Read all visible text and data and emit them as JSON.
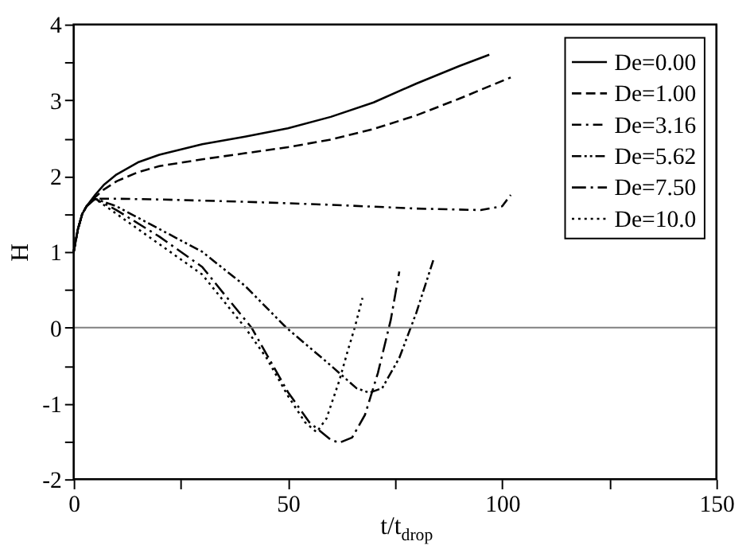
{
  "chart_data": {
    "type": "line",
    "xlabel": "t/t$_{drop}$",
    "ylabel": "H",
    "xlim": [
      0,
      150
    ],
    "xticks": [
      0,
      {
        "value": 25,
        "label": null
      },
      50,
      {
        "value": 75,
        "label": null
      },
      100,
      {
        "value": 125,
        "label": null
      },
      150
    ],
    "ylim": [
      -2,
      4
    ],
    "yticks": [
      -2,
      {
        "value": -1.5,
        "label": null
      },
      -1,
      {
        "value": -0.5,
        "label": null
      },
      0,
      {
        "value": 0.5,
        "label": null
      },
      1,
      {
        "value": 1.5,
        "label": null
      },
      2,
      {
        "value": 2.5,
        "label": null
      },
      3,
      {
        "value": 3.5,
        "label": null
      },
      4
    ],
    "grid": false,
    "legend": "top right",
    "marker": "none",
    "ref_lines": [
      {
        "axis": "y",
        "value": 0,
        "color": "#808080",
        "line_style": "solid"
      }
    ],
    "series": [
      {
        "name": "De=0.00",
        "color": "#000000",
        "line_style": "solid",
        "x": [
          0,
          1,
          2,
          3,
          5,
          7,
          10,
          15,
          20,
          30,
          40,
          50,
          60,
          70,
          80,
          90,
          97
        ],
        "values": [
          1,
          1.3,
          1.5,
          1.6,
          1.75,
          1.88,
          2.02,
          2.18,
          2.28,
          2.42,
          2.52,
          2.63,
          2.78,
          2.97,
          3.22,
          3.45,
          3.6
        ]
      },
      {
        "name": "De=1.00",
        "color": "#000000",
        "line_style": "dashed",
        "x": [
          0,
          1,
          2,
          3,
          5,
          7,
          10,
          15,
          20,
          30,
          40,
          50,
          60,
          70,
          80,
          90,
          102
        ],
        "values": [
          1,
          1.3,
          1.5,
          1.6,
          1.72,
          1.82,
          1.93,
          2.05,
          2.13,
          2.22,
          2.3,
          2.38,
          2.48,
          2.62,
          2.8,
          3.02,
          3.3
        ]
      },
      {
        "name": "De=3.16",
        "color": "#000000",
        "line_style": "dashdot",
        "x": [
          0,
          1,
          2,
          3,
          5,
          10,
          20,
          40,
          60,
          80,
          95,
          100,
          102
        ],
        "values": [
          1,
          1.3,
          1.5,
          1.6,
          1.7,
          1.7,
          1.69,
          1.66,
          1.62,
          1.57,
          1.55,
          1.6,
          1.75
        ]
      },
      {
        "name": "De=5.62",
        "color": "#000000",
        "line_style": "dashdotdot",
        "x": [
          0,
          1,
          2,
          3,
          5,
          10,
          20,
          30,
          40,
          49.6,
          60,
          66,
          69,
          72,
          76,
          80,
          84
        ],
        "values": [
          1,
          1.3,
          1.5,
          1.6,
          1.7,
          1.6,
          1.3,
          1.0,
          0.55,
          0,
          -0.5,
          -0.8,
          -0.86,
          -0.8,
          -0.4,
          0.2,
          0.9
        ]
      },
      {
        "name": "De=7.50",
        "color": "#000000",
        "line_style": "longdashdot",
        "x": [
          0,
          1,
          2,
          3,
          5,
          10,
          20,
          30,
          35,
          41.5,
          45,
          50,
          55,
          60,
          62,
          65,
          68,
          71,
          74,
          76
        ],
        "values": [
          1,
          1.3,
          1.5,
          1.6,
          1.7,
          1.55,
          1.2,
          0.8,
          0.45,
          0,
          -0.35,
          -0.85,
          -1.25,
          -1.48,
          -1.52,
          -1.45,
          -1.15,
          -0.6,
          0.1,
          0.74
        ]
      },
      {
        "name": "De=10.0",
        "color": "#000000",
        "line_style": "dotted",
        "x": [
          0,
          1,
          2,
          3,
          5,
          10,
          20,
          30,
          40,
          45,
          50,
          54,
          56.7,
          59,
          62,
          64,
          65.6,
          67.4
        ],
        "values": [
          1,
          1.3,
          1.5,
          1.6,
          1.7,
          1.5,
          1.1,
          0.7,
          0,
          -0.4,
          -0.9,
          -1.25,
          -1.38,
          -1.2,
          -0.7,
          -0.3,
          0,
          0.39
        ]
      }
    ]
  }
}
